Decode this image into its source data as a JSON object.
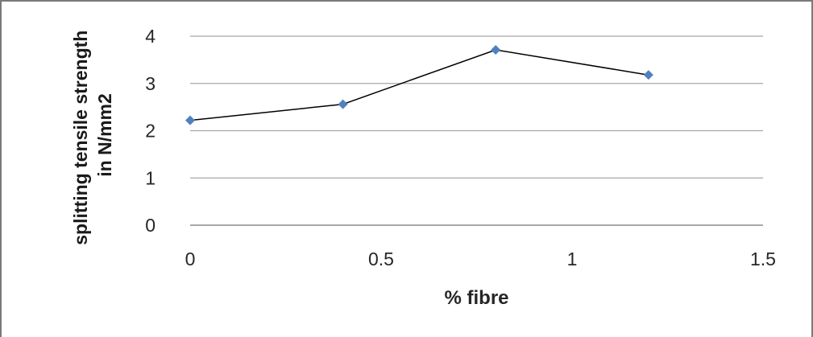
{
  "chart_data": {
    "type": "line",
    "title": "",
    "xlabel": "% fibre",
    "ylabel_lines": [
      "splitting tensile strength",
      "in N/mm2"
    ],
    "x_ticks": [
      "0",
      "0.5",
      "1",
      "1.5"
    ],
    "y_ticks": [
      "0",
      "1",
      "2",
      "3",
      "4"
    ],
    "xlim": [
      0,
      1.5
    ],
    "ylim": [
      0,
      4
    ],
    "grid": "horizontal",
    "legend": "none",
    "series": [
      {
        "x": [
          0,
          0.4,
          0.8,
          1.2
        ],
        "y": [
          2.22,
          2.56,
          3.71,
          3.18
        ],
        "line_color": "#000000",
        "marker_color": "#4f81bd"
      }
    ]
  }
}
